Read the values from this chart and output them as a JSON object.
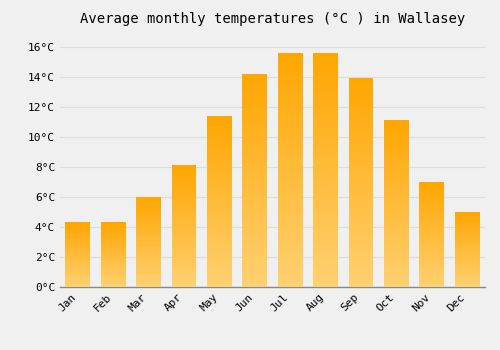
{
  "title": "Average monthly temperatures (°C ) in Wallasey",
  "months": [
    "Jan",
    "Feb",
    "Mar",
    "Apr",
    "May",
    "Jun",
    "Jul",
    "Aug",
    "Sep",
    "Oct",
    "Nov",
    "Dec"
  ],
  "values": [
    4.3,
    4.3,
    6.0,
    8.1,
    11.4,
    14.2,
    15.6,
    15.6,
    13.9,
    11.1,
    7.0,
    5.0
  ],
  "bar_color": "#FFA500",
  "bar_color_light": "#FFD080",
  "ylim": [
    0,
    17
  ],
  "yticks": [
    0,
    2,
    4,
    6,
    8,
    10,
    12,
    14,
    16
  ],
  "background_color": "#F0F0F0",
  "grid_color": "#DDDDDD",
  "title_fontsize": 10,
  "tick_fontsize": 8,
  "bar_width": 0.7
}
